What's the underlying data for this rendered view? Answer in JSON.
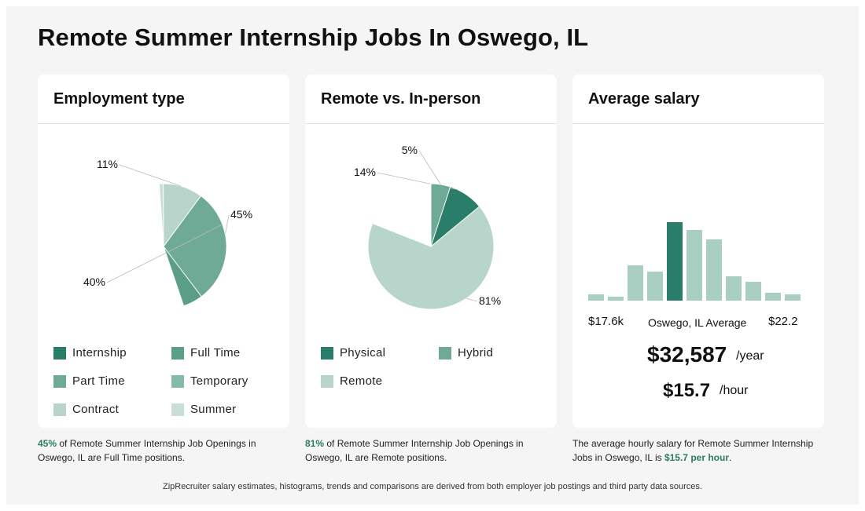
{
  "page": {
    "title": "Remote Summer Internship Jobs In Oswego, IL"
  },
  "employment": {
    "header": "Employment type",
    "legend": [
      {
        "label": "Internship",
        "color": "#2a7d68"
      },
      {
        "label": "Full Time",
        "color": "#5b9e88"
      },
      {
        "label": "Part Time",
        "color": "#6faa97"
      },
      {
        "label": "Temporary",
        "color": "#85b9a8"
      },
      {
        "label": "Contract",
        "color": "#b7d5cb"
      },
      {
        "label": "Summer",
        "color": "#c8dfd7"
      }
    ],
    "note_pct": "45%",
    "note_text": " of Remote Summer Internship Job Openings in Oswego, IL are Full Time positions."
  },
  "remote": {
    "header": "Remote vs. In-person",
    "legend": [
      {
        "label": "Physical",
        "color": "#2a7d68"
      },
      {
        "label": "Hybrid",
        "color": "#6faa97"
      },
      {
        "label": "Remote",
        "color": "#b7d5cb"
      }
    ],
    "note_pct": "81%",
    "note_text": " of Remote Summer Internship Job Openings in Oswego, IL are Remote positions."
  },
  "salary": {
    "header": "Average salary",
    "min_label": "$17.6k",
    "max_label": "$22.2",
    "mid_label": "Oswego, IL Average",
    "yearly": "$32,587",
    "yearly_unit": "/year",
    "hourly": "$15.7",
    "hourly_unit": "/hour",
    "note_pre": "The average hourly salary for Remote Summer Internship Jobs in Oswego, IL is ",
    "note_bold": "$15.7 per hour",
    "note_post": "."
  },
  "footer": "ZipRecruiter salary estimates, histograms, trends and comparisons are derived from both employer job postings and third party data sources.",
  "chart_data": [
    {
      "type": "pie",
      "title": "Employment type",
      "categories": [
        "Internship",
        "Full Time",
        "Part Time",
        "Temporary",
        "Contract",
        "Summer"
      ],
      "values": [
        1,
        45,
        40,
        0,
        11,
        1
      ],
      "labels": [
        "",
        "45%",
        "40%",
        "",
        "11%",
        ""
      ],
      "colors": [
        "#2a7d68",
        "#5b9e88",
        "#6faa97",
        "#85b9a8",
        "#b7d5cb",
        "#c8dfd7"
      ]
    },
    {
      "type": "pie",
      "title": "Remote vs. In-person",
      "categories": [
        "Remote",
        "Physical",
        "Hybrid"
      ],
      "values": [
        81,
        14,
        5
      ],
      "labels": [
        "81%",
        "14%",
        "5%"
      ],
      "colors": [
        "#b7d5cb",
        "#2a7d68",
        "#6faa97"
      ]
    },
    {
      "type": "bar",
      "title": "Average salary",
      "values": [
        8,
        5,
        45,
        37,
        100,
        90,
        78,
        31,
        24,
        10,
        8
      ],
      "highlight_index": 4,
      "color": "#a9cfc2",
      "highlight_color": "#2a7d68"
    }
  ]
}
